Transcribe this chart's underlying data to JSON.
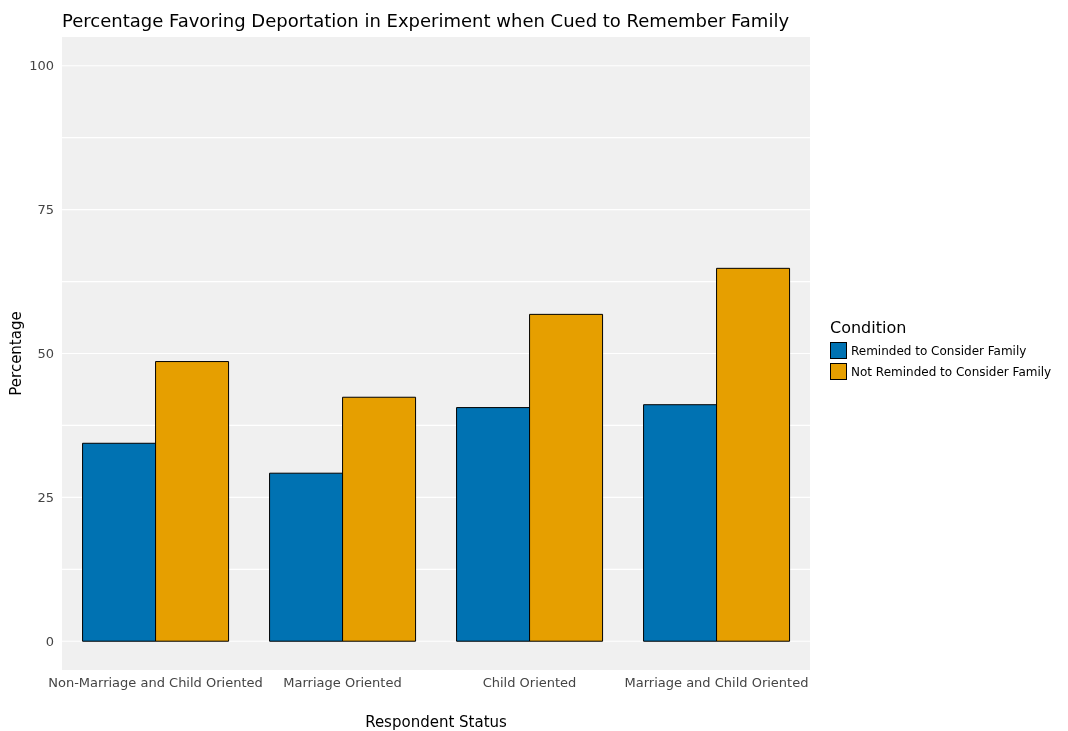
{
  "chart_data": {
    "type": "bar",
    "title": "Percentage Favoring Deportation in Experiment when Cued to Remember Family",
    "xlabel": "Respondent Status",
    "ylabel": "Percentage",
    "legend_title": "Condition",
    "categories": [
      "Non-Marriage and Child Oriented",
      "Marriage Oriented",
      "Child Oriented",
      "Marriage and Child Oriented"
    ],
    "series": [
      {
        "name": "Reminded to Consider Family",
        "color": "#0072b2",
        "values": [
          34.4,
          29.2,
          40.6,
          41.1
        ]
      },
      {
        "name": "Not Reminded to Consider Family",
        "color": "#e69f00",
        "values": [
          48.6,
          42.4,
          56.8,
          64.8
        ]
      }
    ],
    "ylim": [
      -5,
      105
    ],
    "yticks": [
      0,
      {
        "value": 12.5,
        "label": null
      },
      25,
      {
        "value": 37.5,
        "label": null
      },
      50,
      {
        "value": 62.5,
        "label": null
      },
      75,
      {
        "value": 87.5,
        "label": null
      },
      100
    ],
    "grid": "y",
    "legend": "right"
  }
}
